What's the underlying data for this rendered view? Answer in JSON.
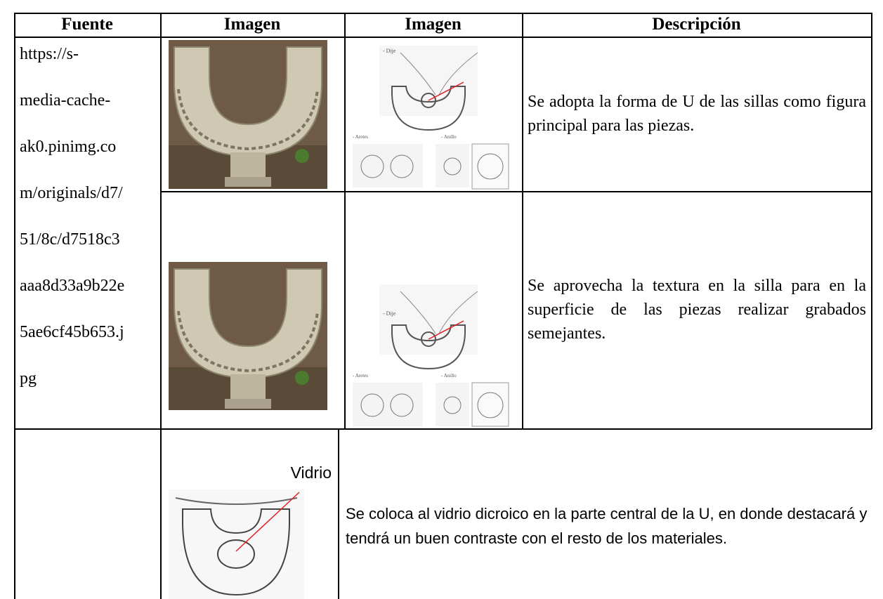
{
  "table": {
    "header": [
      "Fuente",
      "Imagen",
      "Imagen",
      "Descripción"
    ],
    "source_lines": [
      "https://s-",
      "media-cache-",
      "ak0.pinimg.co",
      "m/originals/d7/",
      "51/8c/d7518c3",
      "aaa8d33a9b22e",
      "5ae6cf45b653.j",
      "pg"
    ],
    "sketch_labels": [
      "- Dije",
      "- Aretes",
      "- Anillo"
    ],
    "rows": [
      {
        "description": "Se adopta la forma de U de las sillas como  figura principal para las piezas."
      },
      {
        "description": "Se aprovecha la textura en la silla para en la superficie de las piezas realizar grabados semejantes."
      },
      {
        "image_label": "Vidrio",
        "description": "Se coloca al vidrio dicroico en la parte central de la U, en donde destacará y tendrá un buen contraste con el resto de los materiales."
      }
    ]
  }
}
